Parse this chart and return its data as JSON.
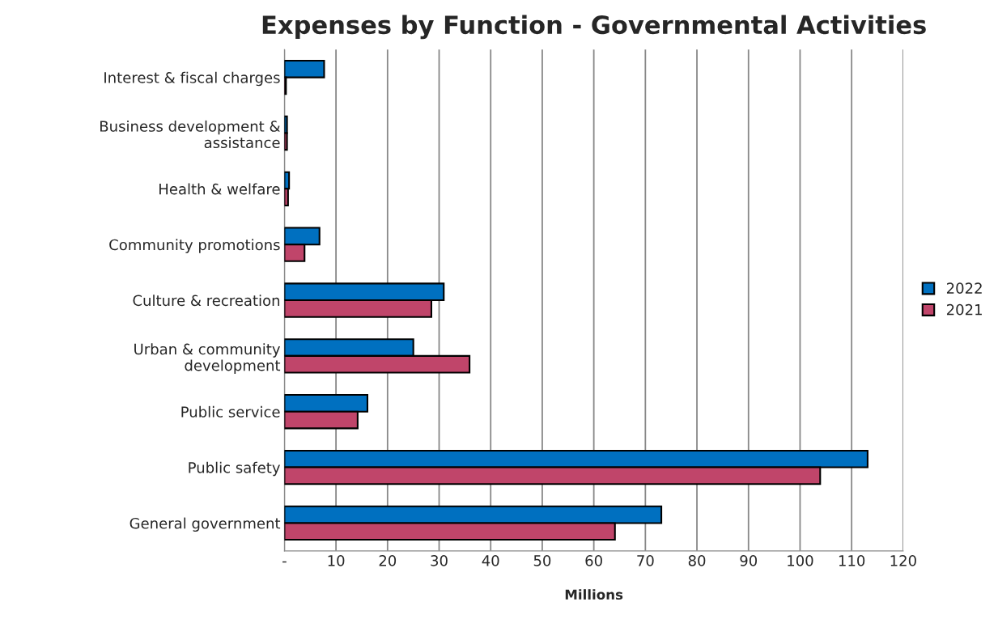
{
  "chart_data": {
    "type": "bar",
    "orientation": "horizontal",
    "title": "Expenses by Function - Governmental Activities",
    "xlabel": "Millions",
    "categories": [
      "Interest & fiscal charges",
      "Business development &\nassistance",
      "Health & welfare",
      "Community promotions",
      "Culture & recreation",
      "Urban & community\ndevelopment",
      "Public service",
      "Public safety",
      "General government"
    ],
    "series": [
      {
        "name": "2022",
        "color": "#0070c0",
        "values": [
          7.7,
          0.5,
          0.9,
          6.8,
          30.9,
          25.0,
          16.1,
          113.1,
          73.1
        ]
      },
      {
        "name": "2021",
        "color": "#c0456a",
        "values": [
          0.3,
          0.5,
          0.7,
          3.9,
          28.5,
          35.9,
          14.2,
          103.9,
          64.1
        ]
      }
    ],
    "xlim": [
      0,
      120
    ],
    "xticks": [
      {
        "value": 0,
        "label": "-"
      },
      10,
      20,
      30,
      40,
      50,
      60,
      70,
      80,
      90,
      100,
      110,
      120
    ],
    "grid": "x",
    "legend": "right"
  }
}
